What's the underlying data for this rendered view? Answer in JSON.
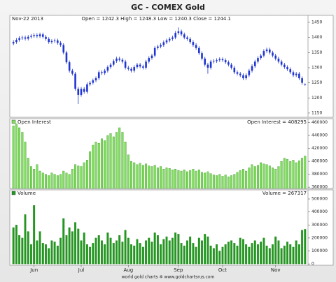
{
  "chart_data": [
    {
      "type": "candlestick",
      "title": "GC - COMEX Gold",
      "date_label": "Nov-22 2013",
      "readout": "Open = 1242.3    High = 1248.3    Low = 1240.3    Close = 1244.1",
      "color": "#1f35d0",
      "ylim": [
        1136,
        1473
      ],
      "yticks": [
        1150,
        1200,
        1250,
        1300,
        1350,
        1400,
        1450
      ],
      "open": [
        1380,
        1385,
        1392,
        1398,
        1400,
        1396,
        1402,
        1405,
        1408,
        1404,
        1410,
        1402,
        1395,
        1385,
        1388,
        1390,
        1382,
        1375,
        1350,
        1318,
        1290,
        1280,
        1230,
        1210,
        1230,
        1220,
        1245,
        1250,
        1258,
        1265,
        1285,
        1282,
        1290,
        1302,
        1310,
        1322,
        1330,
        1326,
        1320,
        1300,
        1296,
        1290,
        1302,
        1310,
        1304,
        1300,
        1320,
        1332,
        1340,
        1365,
        1370,
        1375,
        1384,
        1390,
        1395,
        1400,
        1415,
        1420,
        1410,
        1400,
        1395,
        1385,
        1375,
        1365,
        1348,
        1330,
        1310,
        1300,
        1320,
        1322,
        1325,
        1328,
        1325,
        1318,
        1310,
        1300,
        1285,
        1280,
        1275,
        1265,
        1275,
        1290,
        1305,
        1320,
        1332,
        1340,
        1355,
        1360,
        1350,
        1340,
        1330,
        1320,
        1310,
        1302,
        1295,
        1285,
        1275,
        1280,
        1265,
        1242.3
      ],
      "high": [
        1391,
        1398,
        1404,
        1406,
        1406,
        1408,
        1411,
        1414,
        1414,
        1416,
        1416,
        1408,
        1401,
        1394,
        1396,
        1396,
        1388,
        1381,
        1356,
        1324,
        1296,
        1286,
        1236,
        1236,
        1236,
        1251,
        1256,
        1264,
        1271,
        1291,
        1291,
        1296,
        1308,
        1316,
        1328,
        1336,
        1336,
        1332,
        1326,
        1306,
        1302,
        1308,
        1316,
        1316,
        1310,
        1326,
        1338,
        1346,
        1371,
        1376,
        1381,
        1390,
        1396,
        1401,
        1406,
        1421,
        1433,
        1426,
        1416,
        1406,
        1401,
        1391,
        1381,
        1371,
        1354,
        1336,
        1316,
        1326,
        1328,
        1331,
        1334,
        1334,
        1331,
        1324,
        1316,
        1306,
        1291,
        1286,
        1281,
        1281,
        1296,
        1311,
        1326,
        1338,
        1346,
        1361,
        1366,
        1366,
        1356,
        1346,
        1336,
        1326,
        1316,
        1308,
        1301,
        1291,
        1286,
        1286,
        1271,
        1248.3
      ],
      "low": [
        1374,
        1379,
        1386,
        1392,
        1390,
        1390,
        1396,
        1399,
        1398,
        1398,
        1396,
        1389,
        1379,
        1379,
        1382,
        1376,
        1369,
        1344,
        1312,
        1284,
        1274,
        1224,
        1180,
        1204,
        1214,
        1214,
        1239,
        1244,
        1252,
        1259,
        1276,
        1276,
        1284,
        1296,
        1304,
        1316,
        1320,
        1314,
        1294,
        1290,
        1284,
        1284,
        1296,
        1298,
        1294,
        1294,
        1314,
        1326,
        1334,
        1359,
        1364,
        1369,
        1378,
        1384,
        1389,
        1394,
        1409,
        1404,
        1394,
        1389,
        1379,
        1369,
        1359,
        1342,
        1324,
        1304,
        1280,
        1294,
        1314,
        1316,
        1319,
        1319,
        1312,
        1304,
        1294,
        1279,
        1274,
        1269,
        1259,
        1259,
        1269,
        1284,
        1299,
        1314,
        1326,
        1334,
        1349,
        1344,
        1334,
        1324,
        1314,
        1304,
        1296,
        1289,
        1279,
        1269,
        1269,
        1259,
        1244,
        1240.3
      ],
      "close": [
        1385,
        1392,
        1398,
        1400,
        1396,
        1402,
        1405,
        1408,
        1404,
        1410,
        1402,
        1395,
        1385,
        1388,
        1390,
        1382,
        1375,
        1350,
        1318,
        1290,
        1280,
        1230,
        1210,
        1230,
        1220,
        1245,
        1250,
        1258,
        1265,
        1285,
        1282,
        1290,
        1302,
        1310,
        1322,
        1330,
        1326,
        1320,
        1300,
        1296,
        1290,
        1302,
        1310,
        1304,
        1300,
        1320,
        1332,
        1340,
        1365,
        1370,
        1375,
        1384,
        1390,
        1395,
        1400,
        1415,
        1420,
        1410,
        1400,
        1395,
        1385,
        1375,
        1365,
        1348,
        1330,
        1310,
        1300,
        1320,
        1322,
        1325,
        1328,
        1325,
        1318,
        1310,
        1300,
        1285,
        1280,
        1275,
        1265,
        1275,
        1290,
        1305,
        1320,
        1332,
        1340,
        1355,
        1360,
        1350,
        1340,
        1330,
        1320,
        1310,
        1302,
        1295,
        1285,
        1275,
        1280,
        1265,
        1250,
        1244.1
      ]
    },
    {
      "type": "bar",
      "readout": "Open Interest = 408295",
      "ylim": [
        358000,
        466000
      ],
      "yticks": [
        360000,
        380000,
        400000,
        420000,
        440000,
        460000
      ],
      "series": [
        {
          "name": "Open Interest",
          "color": "#7ee05a",
          "values": [
            455000,
            458000,
            452000,
            445000,
            430000,
            405000,
            392000,
            388000,
            395000,
            385000,
            382000,
            380000,
            378000,
            382000,
            380000,
            378000,
            380000,
            385000,
            382000,
            380000,
            388000,
            395000,
            393000,
            392000,
            398000,
            402000,
            415000,
            425000,
            430000,
            428000,
            435000,
            432000,
            440000,
            443000,
            438000,
            445000,
            452000,
            445000,
            430000,
            410000,
            400000,
            398000,
            395000,
            397000,
            394000,
            396000,
            393000,
            392000,
            394000,
            390000,
            392000,
            388000,
            390000,
            389000,
            387000,
            388000,
            386000,
            385000,
            387000,
            384000,
            386000,
            388000,
            385000,
            387000,
            383000,
            382000,
            384000,
            381000,
            379000,
            378000,
            380000,
            377000,
            379000,
            376000,
            378000,
            380000,
            383000,
            386000,
            388000,
            385000,
            390000,
            395000,
            392000,
            394000,
            398000,
            396000,
            395000,
            393000,
            390000,
            388000,
            392000,
            400000,
            405000,
            403000,
            400000,
            402000,
            398000,
            401000,
            405000,
            408295
          ]
        }
      ]
    },
    {
      "type": "bar",
      "readout": "Volume = 267317",
      "ylim": [
        -10000,
        570000
      ],
      "yticks": [
        0,
        100000,
        200000,
        300000,
        400000,
        500000
      ],
      "xlim": [
        -1,
        100
      ],
      "xticks": [
        {
          "value": 7,
          "label": "Jun"
        },
        {
          "value": 23,
          "label": "Jul"
        },
        {
          "value": 39,
          "label": "Aug"
        },
        {
          "value": 56,
          "label": "Sep"
        },
        {
          "value": 71,
          "label": "Oct"
        },
        {
          "value": 89,
          "label": "Nov"
        }
      ],
      "series": [
        {
          "name": "Volume",
          "color": "#1f9a1f",
          "values": [
            280000,
            300000,
            220000,
            200000,
            380000,
            250000,
            150000,
            450000,
            180000,
            250000,
            160000,
            150000,
            120000,
            180000,
            170000,
            140000,
            200000,
            350000,
            220000,
            280000,
            250000,
            320000,
            270000,
            180000,
            240000,
            150000,
            130000,
            160000,
            200000,
            220000,
            180000,
            150000,
            240000,
            200000,
            160000,
            180000,
            220000,
            170000,
            260000,
            200000,
            150000,
            140000,
            190000,
            160000,
            130000,
            180000,
            200000,
            170000,
            240000,
            220000,
            150000,
            190000,
            210000,
            180000,
            200000,
            240000,
            230000,
            160000,
            140000,
            180000,
            210000,
            160000,
            130000,
            200000,
            180000,
            230000,
            210000,
            140000,
            120000,
            150000,
            100000,
            130000,
            150000,
            170000,
            180000,
            160000,
            140000,
            200000,
            190000,
            150000,
            130000,
            160000,
            180000,
            150000,
            170000,
            200000,
            140000,
            120000,
            150000,
            210000,
            180000,
            120000,
            140000,
            170000,
            150000,
            130000,
            180000,
            150000,
            260000,
            267317
          ]
        }
      ]
    }
  ],
  "footer": "world gold charts ✲ www.goldchartsrus.com"
}
